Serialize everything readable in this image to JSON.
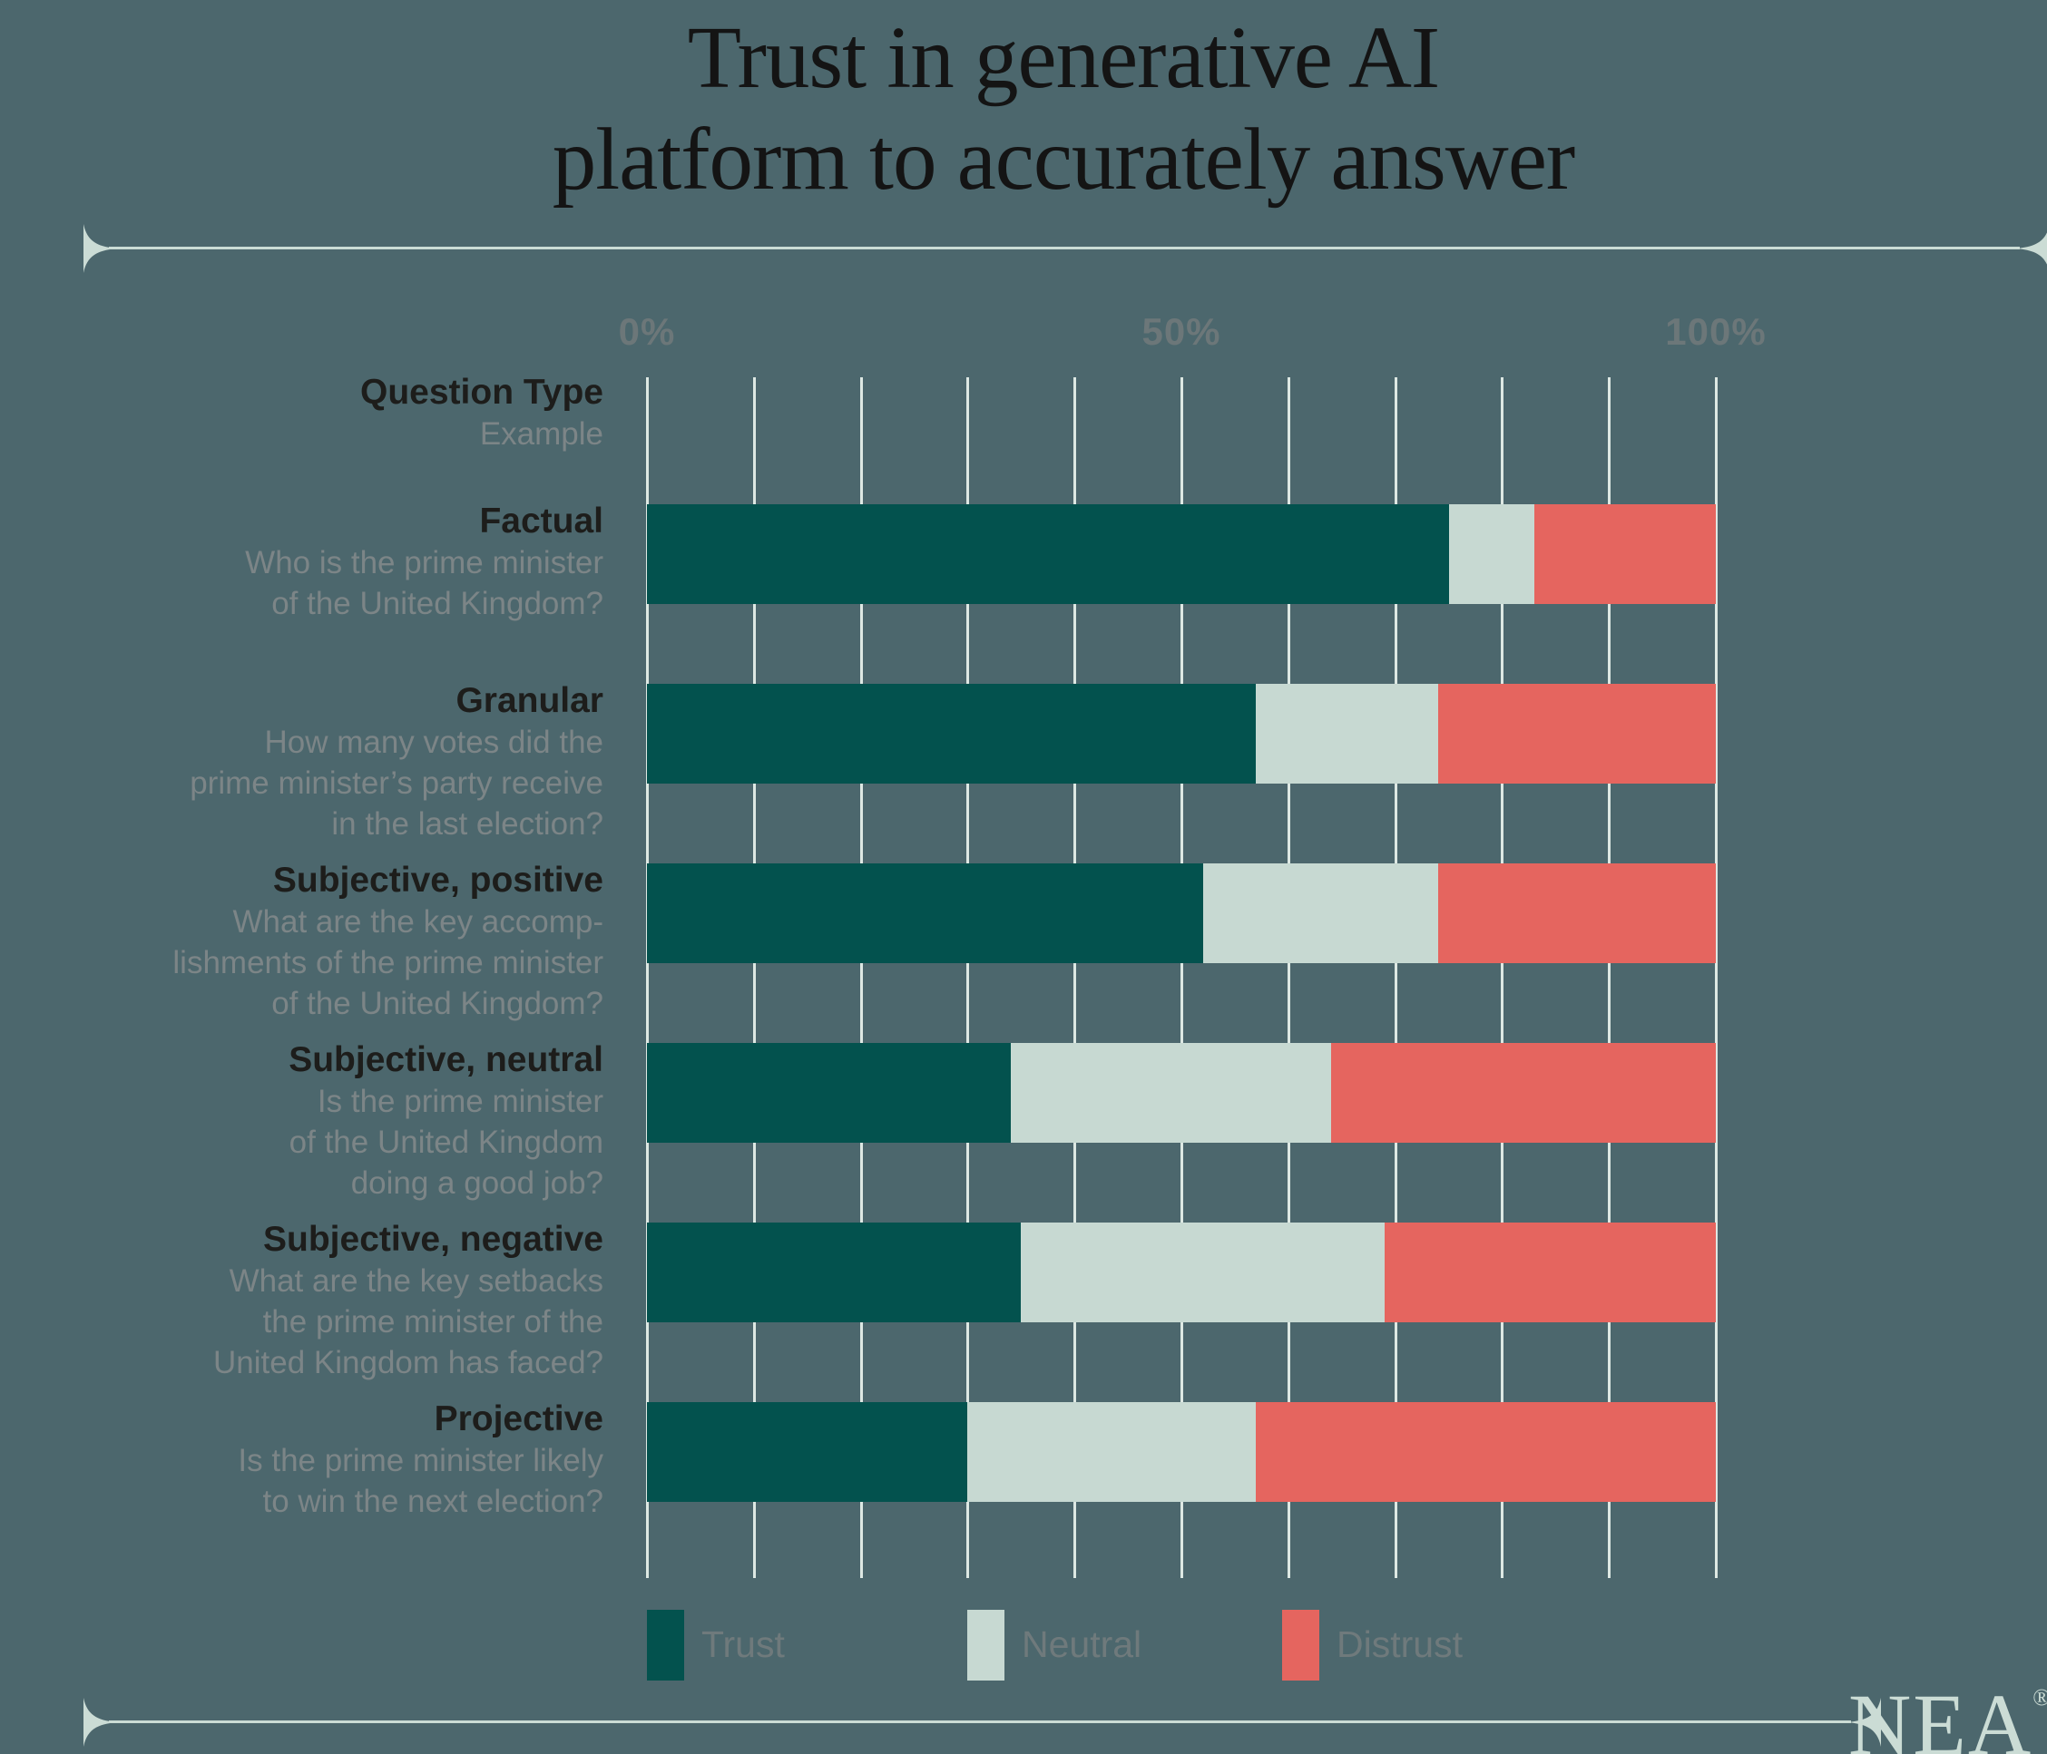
{
  "title": {
    "line1": "Trust in generative AI",
    "line2": "platform to accurately answer"
  },
  "colors": {
    "background": "#4c676d",
    "trust": "#03524e",
    "neutral": "#c7d9d2",
    "distrust": "#e5655f",
    "gridline": "#dde8e3",
    "accent_line": "#cbdcd5",
    "heading_text": "#1d1d1b",
    "example_text": "#7c8587",
    "tick_text": "#6c7779"
  },
  "axis": {
    "tick0": "0%",
    "tick50": "50%",
    "tick100": "100%",
    "minor_gridline_step_percent": 10
  },
  "header_row": {
    "type": "Question Type",
    "example": "Example"
  },
  "legend": [
    {
      "label": "Trust",
      "color_key": "trust"
    },
    {
      "label": "Neutral",
      "color_key": "neutral"
    },
    {
      "label": "Distrust",
      "color_key": "distrust"
    }
  ],
  "chart_data": {
    "type": "bar",
    "stacked": true,
    "orientation": "horizontal",
    "unit": "percent",
    "title": "Trust in generative AI platform to accurately answer",
    "xlim": [
      0,
      100
    ],
    "grid": true,
    "legend_position": "bottom",
    "categories": [
      "Factual",
      "Granular",
      "Subjective, positive",
      "Subjective, neutral",
      "Subjective, negative",
      "Projective"
    ],
    "category_examples": [
      "Who is the prime minister\nof the United Kingdom?",
      "How many votes did the\nprime minister’s party receive\nin the last election?",
      "What are the key accomp-\nlishments of the prime minister\nof the United Kingdom?",
      "Is the prime minister\nof the United Kingdom\ndoing a good job?",
      "What are the key setbacks\nthe prime minister of the\nUnited Kingdom has faced?",
      "Is the prime minister likely\nto win the next election?"
    ],
    "series": [
      {
        "name": "Trust",
        "values": [
          75,
          57,
          52,
          34,
          35,
          30
        ]
      },
      {
        "name": "Neutral",
        "values": [
          8,
          17,
          22,
          30,
          34,
          27
        ]
      },
      {
        "name": "Distrust",
        "values": [
          17,
          26,
          26,
          36,
          31,
          43
        ]
      }
    ]
  },
  "branding": {
    "logo_text": "NEA",
    "registered_mark": "®"
  }
}
